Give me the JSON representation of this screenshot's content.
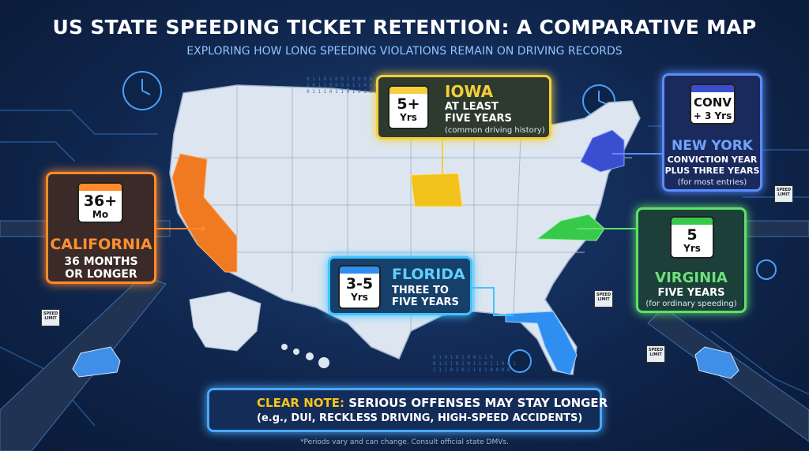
{
  "header": {
    "title": "US STATE SPEEDING TICKET RETENTION: A COMPARATIVE MAP",
    "subtitle": "EXPLORING HOW LONG SPEEDING VIOLATIONS REMAIN ON DRIVING RECORDS"
  },
  "states": [
    {
      "icon": [
        "36+",
        "Mo"
      ],
      "name": "CALIFORNIA",
      "detail": [
        "36 MONTHS",
        "OR LONGER"
      ]
    },
    {
      "icon": [
        "5+",
        "Yrs"
      ],
      "name": "IOWA",
      "detail": [
        "AT LEAST",
        "FIVE YEARS"
      ],
      "note": "(common driving history)"
    },
    {
      "icon": [
        "CONV",
        "+ 3 Yrs"
      ],
      "name": "NEW YORK",
      "detail": [
        "CONVICTION YEAR",
        "PLUS THREE YEARS"
      ],
      "note": "(for most entries)"
    },
    {
      "icon": [
        "3-5",
        "Yrs"
      ],
      "name": "FLORIDA",
      "detail": [
        "THREE TO",
        "FIVE YEARS"
      ]
    },
    {
      "icon": [
        "5",
        "Yrs"
      ],
      "name": "VIRGINIA",
      "detail": [
        "FIVE YEARS"
      ],
      "note": "(for ordinary speeding)"
    }
  ],
  "note": {
    "label": "CLEAR NOTE:",
    "text": "SERIOUS OFFENSES MAY STAY LONGER",
    "detail": "(e.g., DUI, RECKLESS DRIVING, HIGH-SPEED ACCIDENTS)"
  },
  "sign": "SPEED LIMIT",
  "binary": [
    "0 1 1 0 1 0 0 1 0  0 0 0 1 1 1 0",
    "1 0 1 1 0 0 0 0 1 1 0 1 0 0 0",
    "0 1 1 1 0 1 1 0 1 0 1 0 1 1 0",
    "0 1 0 1 0 1 0 0 1 1 0",
    "0 1 1 1 0 1 0 1 1 0 1 1 0 0 1",
    "1 1 1 0 1 0 1 1 0 1 0 0 0 0"
  ],
  "footnote": "*Periods vary and can change. Consult official state DMVs."
}
